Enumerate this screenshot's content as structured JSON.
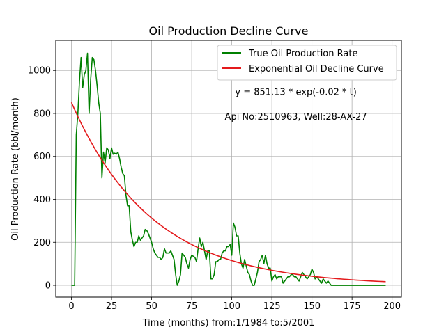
{
  "chart_data": {
    "type": "line",
    "title": "Oil Production Decline Curve",
    "xlabel": "Time (months) from:1/1984 to:5/2001",
    "ylabel": "Oil Production Rate (bbl/month)",
    "xlim": [
      -9.8,
      205.8
    ],
    "ylim": [
      -55,
      1140
    ],
    "xticks": [
      0,
      25,
      50,
      75,
      100,
      125,
      150,
      175,
      200
    ],
    "yticks": [
      0,
      200,
      400,
      600,
      800,
      1000
    ],
    "grid": true,
    "legend_position": "top-right",
    "annotations": [
      {
        "text": "y = 851.13 * exp(-0.02 * t)",
        "x": 140,
        "y": 900
      },
      {
        "text": "Api No:2510963, Well:28-AX-27",
        "x": 140,
        "y": 785
      }
    ],
    "series": [
      {
        "name": "True Oil Production Rate",
        "color": "#008000",
        "x": [
          0,
          1,
          2,
          3,
          4,
          5,
          6,
          7,
          8,
          9,
          10,
          11,
          12,
          13,
          14,
          15,
          16,
          17,
          18,
          19,
          20,
          21,
          22,
          23,
          24,
          25,
          26,
          27,
          28,
          29,
          30,
          31,
          32,
          33,
          34,
          35,
          36,
          37,
          38,
          39,
          40,
          41,
          42,
          43,
          44,
          45,
          46,
          47,
          48,
          49,
          50,
          51,
          52,
          53,
          54,
          55,
          56,
          57,
          58,
          59,
          60,
          61,
          62,
          63,
          64,
          65,
          66,
          67,
          68,
          69,
          70,
          71,
          72,
          73,
          74,
          75,
          76,
          77,
          78,
          79,
          80,
          81,
          82,
          83,
          84,
          85,
          86,
          87,
          88,
          89,
          90,
          91,
          92,
          93,
          94,
          95,
          96,
          97,
          98,
          99,
          100,
          101,
          102,
          103,
          104,
          105,
          106,
          107,
          108,
          109,
          110,
          111,
          112,
          113,
          114,
          115,
          116,
          117,
          118,
          119,
          120,
          121,
          122,
          123,
          124,
          125,
          126,
          127,
          128,
          129,
          130,
          131,
          132,
          133,
          134,
          135,
          136,
          137,
          138,
          139,
          140,
          141,
          142,
          143,
          144,
          145,
          146,
          147,
          148,
          149,
          150,
          151,
          152,
          153,
          154,
          155,
          156,
          157,
          158,
          159,
          160,
          161,
          162,
          163,
          164,
          165,
          170,
          180,
          190,
          196
        ],
        "y": [
          0,
          0,
          0,
          700,
          800,
          950,
          1060,
          920,
          980,
          1000,
          1080,
          800,
          960,
          1060,
          1050,
          1000,
          930,
          850,
          800,
          500,
          620,
          570,
          640,
          630,
          590,
          640,
          610,
          615,
          610,
          620,
          590,
          550,
          520,
          510,
          420,
          370,
          370,
          250,
          210,
          180,
          200,
          200,
          230,
          210,
          220,
          230,
          260,
          255,
          240,
          220,
          200,
          170,
          150,
          140,
          130,
          130,
          120,
          130,
          170,
          150,
          150,
          150,
          160,
          140,
          120,
          50,
          0,
          20,
          50,
          150,
          140,
          130,
          100,
          80,
          120,
          140,
          135,
          130,
          110,
          170,
          220,
          180,
          200,
          160,
          120,
          160,
          160,
          30,
          30,
          50,
          110,
          110,
          120,
          120,
          150,
          160,
          160,
          180,
          180,
          190,
          140,
          290,
          270,
          230,
          230,
          150,
          100,
          80,
          120,
          90,
          60,
          50,
          20,
          0,
          0,
          30,
          60,
          110,
          120,
          140,
          100,
          140,
          100,
          80,
          80,
          20,
          40,
          50,
          30,
          40,
          40,
          40,
          10,
          20,
          30,
          40,
          40,
          50,
          50,
          40,
          40,
          30,
          20,
          40,
          60,
          50,
          40,
          30,
          40,
          50,
          75,
          60,
          30,
          40,
          30,
          20,
          10,
          30,
          20,
          10,
          20,
          10,
          0,
          0,
          0,
          0,
          0,
          0,
          0,
          0
        ]
      },
      {
        "name": "Exponential Oil Decline Curve",
        "color": "#e41a1c",
        "equation": {
          "a": 851.13,
          "b": 0.02
        },
        "x_range": [
          0,
          196
        ]
      }
    ]
  }
}
